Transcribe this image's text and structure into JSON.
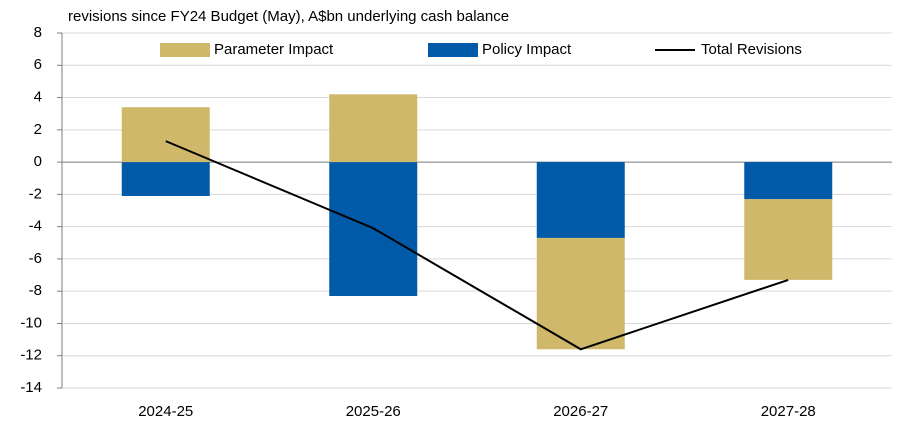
{
  "chart_data": {
    "type": "bar",
    "stacked": true,
    "title": "revisions since FY24 Budget (May), A$bn underlying cash balance",
    "categories": [
      "2024-25",
      "2025-26",
      "2026-27",
      "2027-28"
    ],
    "series": [
      {
        "name": "Parameter Impact",
        "color": "#cfb86a",
        "values": [
          3.4,
          4.2,
          -6.9,
          -5.0
        ]
      },
      {
        "name": "Policy Impact",
        "color": "#005aa7",
        "values": [
          -2.1,
          -8.3,
          -4.7,
          -2.3
        ]
      },
      {
        "name": "Total Revisions",
        "type": "line",
        "color": "#000000",
        "values": [
          1.3,
          -4.1,
          -11.6,
          -7.3
        ]
      }
    ],
    "ylim": [
      -14,
      8
    ],
    "yticks": [
      -14,
      -12,
      -10,
      -8,
      -6,
      -4,
      -2,
      0,
      2,
      4,
      6,
      8
    ],
    "grid": true,
    "legend": "top"
  }
}
